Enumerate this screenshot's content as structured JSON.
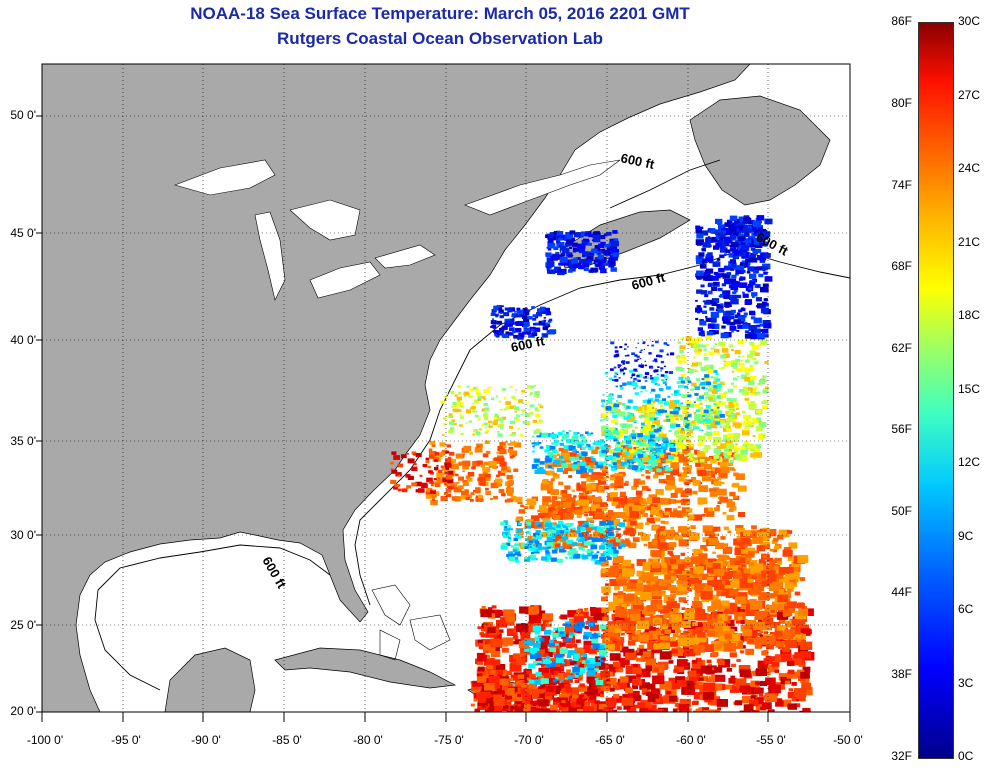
{
  "title": {
    "line1": "NOAA-18 Sea Surface Temperature:  March 05, 2016 2201 GMT",
    "line2": "Rutgers Coastal Ocean Observation Lab"
  },
  "axes": {
    "x_labels": [
      "-100 0'",
      "-95 0'",
      "-90 0'",
      "-85 0'",
      "-80 0'",
      "-75 0'",
      "-70 0'",
      "-65 0'",
      "-60 0'",
      "-55 0'",
      "-50 0'"
    ],
    "y_labels": [
      "50 0'",
      "45 0'",
      "40 0'",
      "35 0'",
      "30 0'",
      "25 0'",
      "20 0'"
    ]
  },
  "contour_labels": [
    "600 ft",
    "600 ft",
    "600 ft",
    "600 ft",
    "600 ft"
  ],
  "colorbar": {
    "fahrenheit": [
      "86F",
      "80F",
      "74F",
      "68F",
      "62F",
      "56F",
      "50F",
      "44F",
      "38F",
      "32F"
    ],
    "celsius": [
      "30C",
      "27C",
      "24C",
      "21C",
      "18C",
      "15C",
      "12C",
      "9C",
      "6C",
      "3C",
      "0C"
    ]
  },
  "colors": {
    "land": "#a9a9a9",
    "title": "#1a2aa8",
    "ocean_nodata": "#ffffff"
  }
}
